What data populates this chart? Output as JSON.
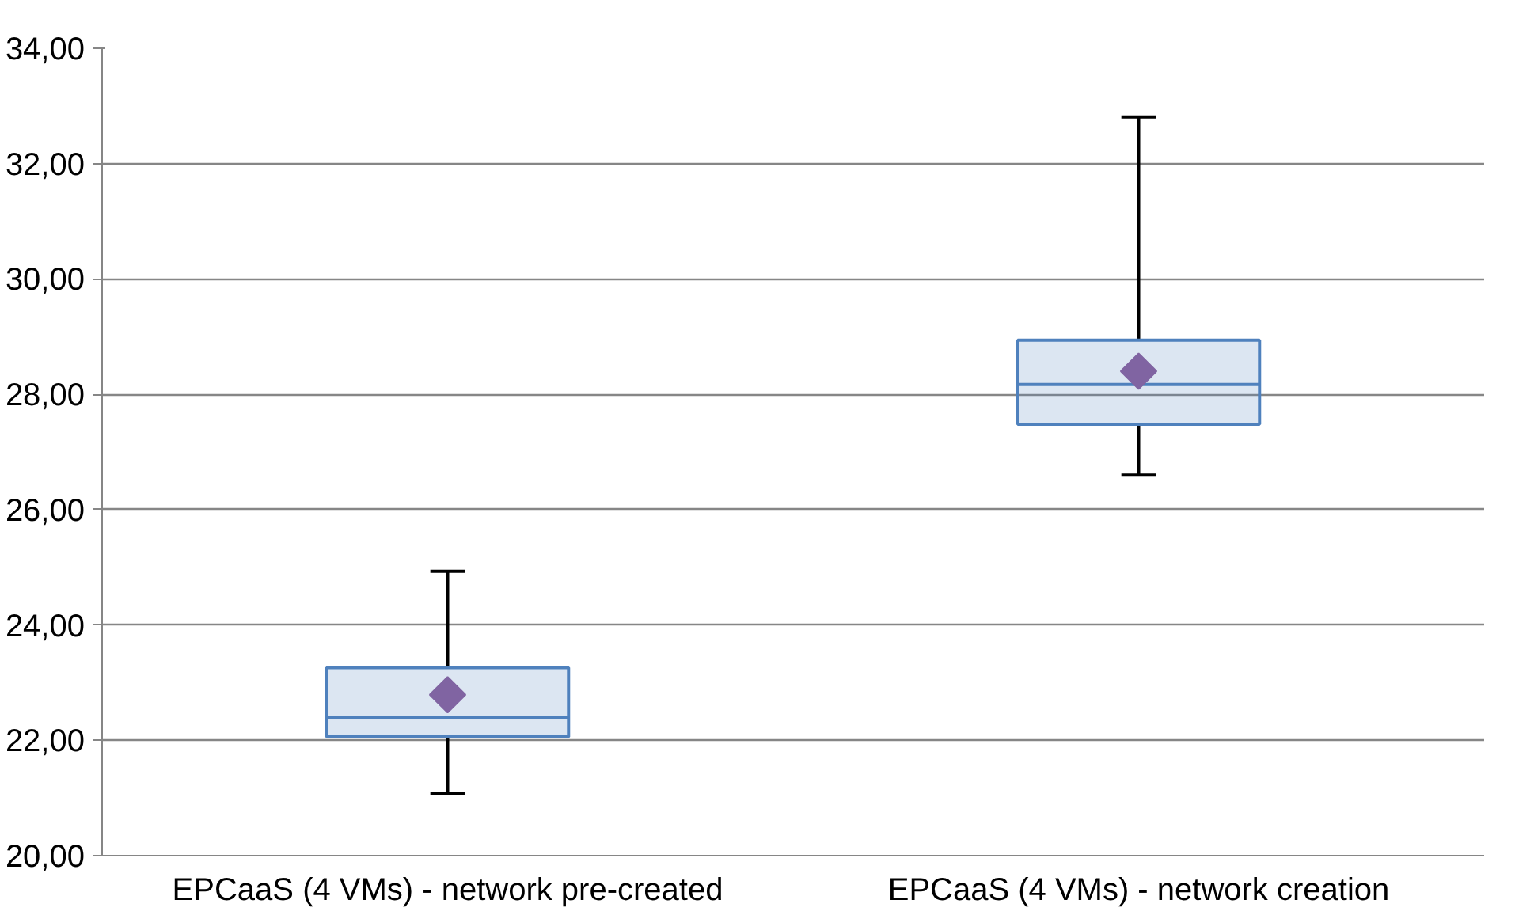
{
  "chart_data": {
    "type": "box",
    "categories": [
      "EPCaaS (4 VMs) - network pre-created",
      "EPCaaS (4 VMs) - network creation"
    ],
    "boxes": [
      {
        "low": 21.07,
        "q1": 22.06,
        "median": 22.4,
        "q3": 23.26,
        "high": 24.93
      },
      {
        "low": 26.6,
        "q1": 27.48,
        "median": 28.17,
        "q3": 28.94,
        "high": 32.81
      }
    ],
    "color": "#4f81bd",
    "marker": "diamond",
    "series": [
      {
        "type": "scatter",
        "x": [
          "EPCaaS (4 VMs) - network pre-created",
          "EPCaaS (4 VMs) - network creation"
        ],
        "values": [
          22.79,
          28.4
        ],
        "color": "#8064a2"
      }
    ],
    "ylim": [
      20,
      34
    ],
    "yticks": [
      {
        "value": 20,
        "label": "20,00"
      },
      {
        "value": 22,
        "label": "22,00"
      },
      {
        "value": 24,
        "label": "24,00"
      },
      {
        "value": 26,
        "label": "26,00"
      },
      {
        "value": 28,
        "label": "28,00"
      },
      {
        "value": 30,
        "label": "30,00"
      },
      {
        "value": 32,
        "label": "32,00"
      },
      {
        "value": 34,
        "label": "34,00"
      }
    ],
    "grid": "y"
  }
}
